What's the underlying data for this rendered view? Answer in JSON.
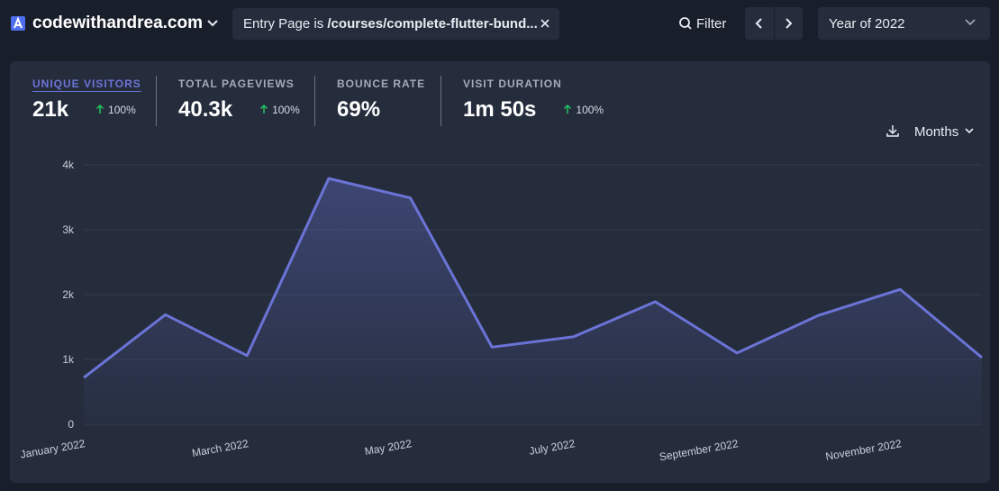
{
  "header": {
    "site": "codewithandrea.com",
    "filter_label": "Entry Page is",
    "filter_value": "/courses/complete-flutter-bund...",
    "filter_button": "Filter",
    "period": "Year of 2022"
  },
  "stats": [
    {
      "label": "UNIQUE VISITORS",
      "value": "21k",
      "change": "100%"
    },
    {
      "label": "TOTAL PAGEVIEWS",
      "value": "40.3k",
      "change": "100%"
    },
    {
      "label": "BOUNCE RATE",
      "value": "69%"
    },
    {
      "label": "VISIT DURATION",
      "value": "1m 50s",
      "change": "100%"
    }
  ],
  "interval": "Months",
  "chart_data": {
    "type": "line",
    "categories": [
      "January 2022",
      null,
      "March 2022",
      null,
      "May 2022",
      null,
      "July 2022",
      null,
      "September 2022",
      null,
      "November 2022",
      null
    ],
    "values": [
      720,
      1690,
      1060,
      3790,
      3490,
      1190,
      1350,
      1890,
      1100,
      1680,
      2080,
      1030
    ],
    "color": "#6b74d6",
    "ylim": [
      0,
      4000
    ],
    "yticks": [
      0,
      {
        "value": 1000,
        "label": "1k"
      },
      {
        "value": 2000,
        "label": "2k"
      },
      {
        "value": 3000,
        "label": "3k"
      },
      {
        "value": 4000,
        "label": "4k"
      }
    ],
    "grid": true
  }
}
